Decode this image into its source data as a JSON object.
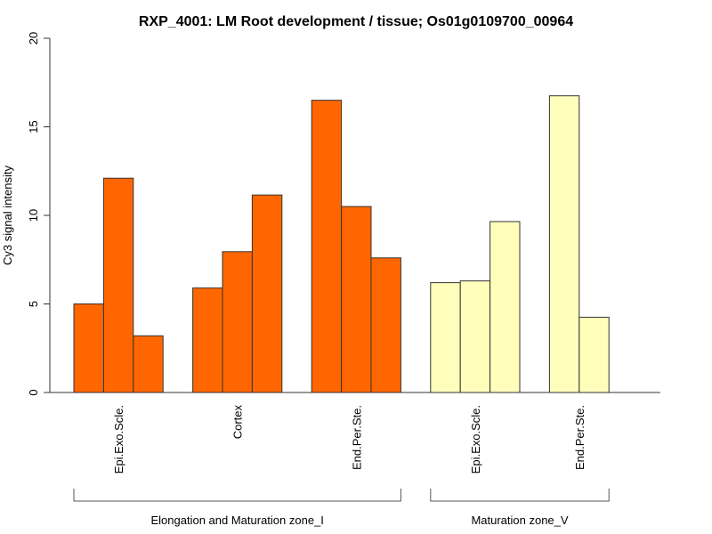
{
  "chart_data": {
    "type": "bar",
    "title": "RXP_4001: LM Root development / tissue; Os01g0109700_00964",
    "xlabel": "",
    "ylabel": "Cy3 signal intensity",
    "ylim": [
      0,
      20
    ],
    "yticks": [
      0,
      5,
      10,
      15,
      20
    ],
    "grid": false,
    "legend": "none",
    "groups": [
      {
        "name": "Elongation and Maturation zone_I",
        "color": "#FF6600",
        "categories": [
          {
            "label": "Epi.Exo.Scle.",
            "values": [
              5.0,
              12.1,
              3.2
            ]
          },
          {
            "label": "Cortex",
            "values": [
              5.9,
              7.95,
              11.15
            ]
          },
          {
            "label": "End.Per.Ste.",
            "values": [
              16.5,
              10.5,
              7.6
            ]
          }
        ]
      },
      {
        "name": "Maturation zone_V",
        "color": "#FFFFBB",
        "categories": [
          {
            "label": "Epi.Exo.Scle.",
            "values": [
              6.2,
              6.3,
              9.65
            ]
          },
          {
            "label": "End.Per.Ste.",
            "values": [
              16.75,
              4.25
            ]
          }
        ]
      }
    ]
  }
}
